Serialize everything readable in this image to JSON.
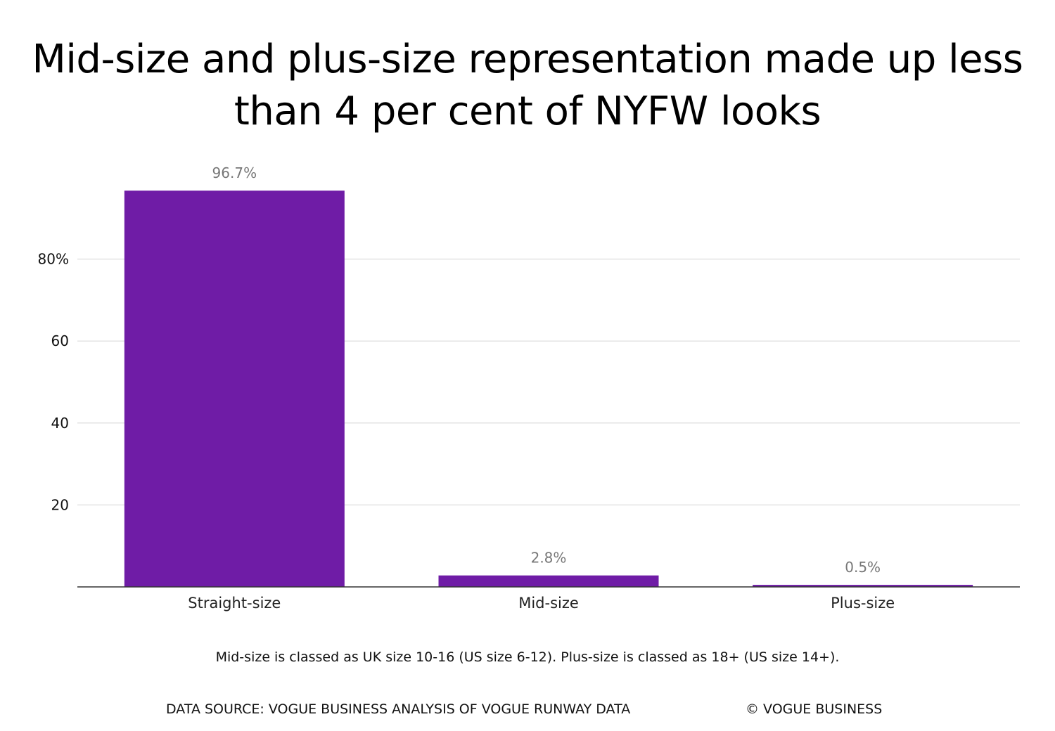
{
  "chart_data": {
    "type": "bar",
    "title": "Mid-size and plus-size representation made up less than 4 per cent of NYFW looks",
    "categories": [
      "Straight-size",
      "Mid-size",
      "Plus-size"
    ],
    "values": [
      96.7,
      2.8,
      0.5
    ],
    "data_labels": [
      "96.7%",
      "2.8%",
      "0.5%"
    ],
    "yticks": [
      20,
      40,
      60,
      80
    ],
    "ytick_labels": [
      "20",
      "40",
      "60",
      "80%"
    ],
    "ylim": [
      0,
      100
    ],
    "grid": true,
    "xlabel": "",
    "ylabel": "",
    "bar_color": "#6f1ca6"
  },
  "footnote": "Mid-size is classed as UK size 10-16 (US size 6-12). Plus-size is classed as 18+ (US size 14+).",
  "source": "DATA SOURCE: VOGUE BUSINESS ANALYSIS OF VOGUE RUNWAY DATA",
  "copyright": "© VOGUE BUSINESS"
}
